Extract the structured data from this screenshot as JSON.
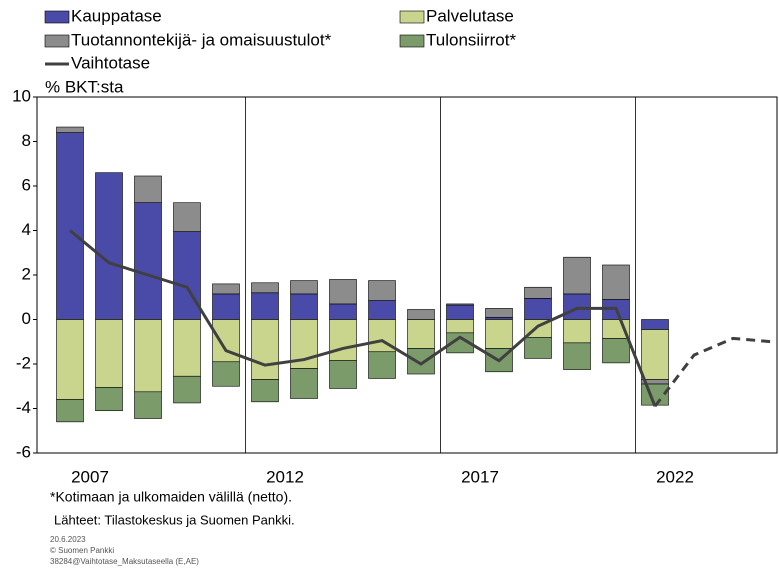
{
  "chart_data": {
    "type": "bar",
    "ylabel": "% BKT:sta",
    "categories": [
      "2007",
      null,
      null,
      null,
      null,
      "2012",
      null,
      null,
      null,
      null,
      "2017",
      null,
      null,
      null,
      null,
      "2022",
      null,
      null,
      null
    ],
    "series": [
      {
        "name": "Kauppatase",
        "color": "#4a4aa8",
        "values": [
          8.4,
          6.6,
          5.25,
          3.95,
          1.15,
          1.2,
          1.15,
          0.7,
          0.85,
          0,
          0.65,
          0.1,
          0.95,
          1.15,
          0.9,
          -0.45,
          null,
          null,
          null
        ]
      },
      {
        "name": "Palvelutase",
        "color": "#c9d58c",
        "values": [
          -3.6,
          -3.05,
          -3.25,
          -2.55,
          -1.9,
          -2.7,
          -2.2,
          -1.85,
          -1.45,
          -1.3,
          -0.6,
          -1.3,
          -0.8,
          -1.05,
          -0.85,
          -2.25,
          null,
          null,
          null
        ]
      },
      {
        "name": "Tuotannontekijä- ja omaisuustulot*",
        "color": "#8c8c8c",
        "values": [
          0.25,
          0,
          1.2,
          1.3,
          0.45,
          0.45,
          0.6,
          1.1,
          0.9,
          0.45,
          0.05,
          0.4,
          0.5,
          1.65,
          1.55,
          -0.2,
          null,
          null,
          null
        ]
      },
      {
        "name": "Tulonsiirrot*",
        "color": "#7b9b6b",
        "values": [
          -1.0,
          -1.05,
          -1.2,
          -1.2,
          -1.1,
          -1.0,
          -1.35,
          -1.25,
          -1.2,
          -1.15,
          -0.9,
          -1.05,
          -0.95,
          -1.2,
          -1.1,
          -0.95,
          null,
          null,
          null
        ]
      },
      {
        "name": "Vaihtotase",
        "color": "#404040",
        "type": "line",
        "dashed_from": "2022",
        "values": [
          4.0,
          2.55,
          2.0,
          1.45,
          -1.4,
          -2.05,
          -1.8,
          -1.3,
          -0.95,
          -2.0,
          -0.8,
          -1.85,
          -0.3,
          0.5,
          0.5,
          -3.9,
          -1.6,
          -0.85,
          -1.0
        ]
      }
    ],
    "ylim": [
      -6,
      10
    ],
    "yticks": [
      -6,
      -4,
      -2,
      0,
      2,
      4,
      6,
      8,
      10
    ],
    "footnote": "*Kotimaan ja ulkomaiden välillä (netto).",
    "source": "Lähteet: Tilastokeskus ja Suomen Pankki.",
    "meta": [
      "20.6.2023",
      "© Suomen Pankki",
      "38284@Vaihtotase_Maksutaseella (E,AE)"
    ]
  }
}
